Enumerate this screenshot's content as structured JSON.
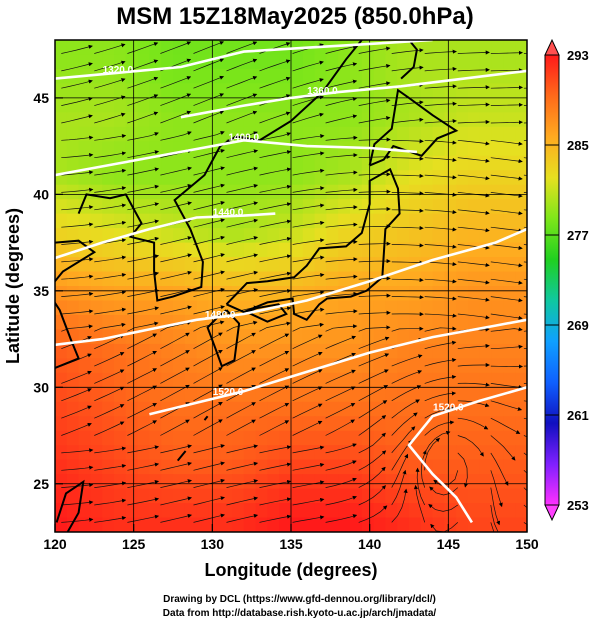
{
  "chart_data": {
    "type": "heatmap",
    "title": "MSM 15Z18May2025 (850.0hPa)",
    "xlabel": "Longitude (degrees)",
    "ylabel": "Latitude  (degrees)",
    "xlim": [
      120,
      150
    ],
    "ylim": [
      22.5,
      48
    ],
    "x_ticks": [
      120,
      125,
      130,
      135,
      140,
      145,
      150
    ],
    "y_ticks": [
      25,
      30,
      35,
      40,
      45
    ],
    "colorbar": {
      "min": 253,
      "max": 293,
      "ticks": [
        293,
        285,
        277,
        269,
        261,
        253
      ],
      "colors": [
        "#ff1a1a",
        "#ff6a1a",
        "#ffaa20",
        "#e6e020",
        "#7ee61a",
        "#20d020",
        "#10c8a0",
        "#10a0ff",
        "#1060ff",
        "#1010c0",
        "#8020ff",
        "#ff30ff"
      ]
    },
    "temperature_field": [
      {
        "lat": 47,
        "values": [
          279,
          279,
          278,
          278,
          278,
          279,
          280,
          280,
          280
        ]
      },
      {
        "lat": 44,
        "values": [
          280,
          280,
          279,
          279,
          279,
          279,
          280,
          281,
          281
        ]
      },
      {
        "lat": 41,
        "values": [
          280,
          279,
          279,
          279,
          279,
          280,
          282,
          283,
          283
        ]
      },
      {
        "lat": 38,
        "values": [
          283,
          282,
          281,
          280,
          281,
          283,
          284,
          285,
          285
        ]
      },
      {
        "lat": 35,
        "values": [
          287,
          286,
          286,
          285,
          285,
          286,
          286,
          287,
          287
        ]
      },
      {
        "lat": 32,
        "values": [
          290,
          289,
          288,
          287,
          287,
          287,
          288,
          288,
          288
        ]
      },
      {
        "lat": 29,
        "values": [
          291,
          290,
          289,
          289,
          289,
          289,
          289,
          289,
          289
        ]
      },
      {
        "lat": 26,
        "values": [
          292,
          291,
          290,
          290,
          291,
          291,
          290,
          290,
          290
        ]
      },
      {
        "lat": 23,
        "values": [
          293,
          292,
          292,
          292,
          293,
          293,
          292,
          291,
          291
        ]
      }
    ],
    "temperature_lons": [
      120,
      123.75,
      127.5,
      131.25,
      135,
      138.75,
      142.5,
      146.25,
      150
    ],
    "height_contours": [
      {
        "label": "1320.0",
        "label_lon": 124,
        "label_lat": 46.3,
        "points": [
          [
            120,
            46.0
          ],
          [
            124,
            46.3
          ],
          [
            128,
            46.6
          ],
          [
            132,
            47.4
          ],
          [
            136,
            47.6
          ],
          [
            140,
            47.8
          ],
          [
            144,
            48.0
          ]
        ]
      },
      {
        "label": "1360.0",
        "label_lon": 137,
        "label_lat": 45.2,
        "points": [
          [
            128,
            44.0
          ],
          [
            132,
            44.6
          ],
          [
            135,
            45.0
          ],
          [
            138,
            45.3
          ],
          [
            142,
            45.6
          ],
          [
            146,
            46.0
          ],
          [
            150,
            46.4
          ]
        ]
      },
      {
        "label": "1400.0",
        "label_lon": 132,
        "label_lat": 42.8,
        "points": [
          [
            120,
            41.0
          ],
          [
            124,
            41.6
          ],
          [
            128,
            42.2
          ],
          [
            132,
            42.8
          ],
          [
            136,
            42.5
          ],
          [
            140,
            42.4
          ],
          [
            143,
            42.2
          ]
        ]
      },
      {
        "label": "1440.0",
        "label_lon": 131,
        "label_lat": 38.9,
        "points": [
          [
            120,
            36.7
          ],
          [
            123,
            37.5
          ],
          [
            126,
            38.2
          ],
          [
            129,
            38.8
          ],
          [
            132,
            38.9
          ],
          [
            134,
            39.0
          ]
        ]
      },
      {
        "label": "1480.0",
        "label_lon": 130.5,
        "label_lat": 33.6,
        "points": [
          [
            120,
            32.2
          ],
          [
            123,
            32.5
          ],
          [
            126,
            33.0
          ],
          [
            129,
            33.5
          ],
          [
            132,
            33.8
          ],
          [
            136,
            34.5
          ],
          [
            140,
            35.5
          ],
          [
            144,
            36.6
          ],
          [
            148,
            37.5
          ],
          [
            150,
            38.2
          ]
        ]
      },
      {
        "label": "1520.0",
        "label_lon": 131,
        "label_lat": 29.6,
        "points": [
          [
            126,
            28.6
          ],
          [
            129,
            29.2
          ],
          [
            132,
            29.8
          ],
          [
            136,
            30.8
          ],
          [
            140,
            31.8
          ],
          [
            144,
            32.6
          ],
          [
            148,
            33.2
          ],
          [
            150,
            33.5
          ]
        ]
      },
      {
        "label": "1520.0",
        "label_lon": 145,
        "label_lat": 28.8,
        "points": [
          [
            150,
            30.0
          ],
          [
            147,
            29.3
          ],
          [
            144,
            28.5
          ],
          [
            142.5,
            27.0
          ],
          [
            144,
            25.5
          ],
          [
            145.5,
            24.3
          ],
          [
            146.5,
            23.0
          ]
        ]
      }
    ],
    "credits": [
      "Drawing by DCL (https://www.gfd-dennou.org/library/dcl/)",
      "Data from http://database.rish.kyoto-u.ac.jp/arch/jmadata/"
    ]
  }
}
